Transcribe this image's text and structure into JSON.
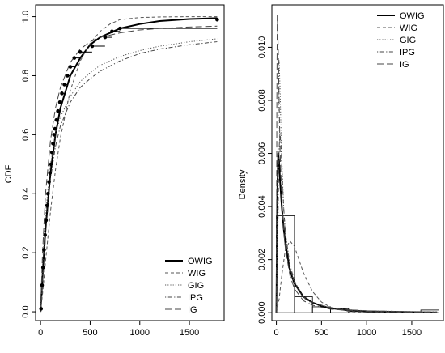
{
  "chart_data": [
    {
      "type": "line",
      "panel": "cdf",
      "xlabel": "",
      "ylabel": "CDF",
      "xlim": [
        -50,
        1850
      ],
      "ylim": [
        -0.03,
        1.04
      ],
      "x_ticks": [
        0,
        500,
        1000,
        1500
      ],
      "y_ticks": [
        0.0,
        0.2,
        0.4,
        0.6,
        0.8,
        1.0
      ],
      "grid": false,
      "legend_position": "bottom-right",
      "legend": [
        "OWIG",
        "WIG",
        "GIG",
        "IPG",
        "IG"
      ],
      "empirical_points": {
        "x": [
          5,
          15,
          25,
          35,
          45,
          55,
          65,
          75,
          85,
          95,
          105,
          115,
          125,
          135,
          145,
          160,
          175,
          195,
          215,
          240,
          270,
          300,
          340,
          400,
          520,
          650,
          720,
          800,
          1780
        ],
        "y": [
          0.01,
          0.09,
          0.15,
          0.21,
          0.26,
          0.31,
          0.36,
          0.4,
          0.44,
          0.47,
          0.5,
          0.54,
          0.57,
          0.6,
          0.62,
          0.65,
          0.68,
          0.71,
          0.74,
          0.77,
          0.8,
          0.83,
          0.86,
          0.88,
          0.9,
          0.93,
          0.95,
          0.96,
          0.99
        ]
      },
      "series": [
        {
          "name": "OWIG",
          "style": "solid",
          "x": [
            0,
            20,
            50,
            100,
            150,
            200,
            300,
            400,
            500,
            600,
            800,
            1000,
            1200,
            1500,
            1780
          ],
          "y": [
            0.0,
            0.12,
            0.28,
            0.47,
            0.6,
            0.69,
            0.8,
            0.86,
            0.905,
            0.93,
            0.96,
            0.975,
            0.985,
            0.992,
            0.995
          ]
        },
        {
          "name": "WIG",
          "style": "dashed",
          "x": [
            0,
            20,
            50,
            100,
            150,
            200,
            300,
            400,
            500,
            600,
            700,
            800,
            1000,
            1200,
            1500,
            1780
          ],
          "y": [
            0.0,
            0.06,
            0.17,
            0.34,
            0.48,
            0.59,
            0.75,
            0.85,
            0.91,
            0.95,
            0.975,
            0.99,
            0.997,
            0.999,
            1.0,
            1.0
          ]
        },
        {
          "name": "GIG",
          "style": "dotted",
          "x": [
            0,
            20,
            50,
            100,
            150,
            200,
            300,
            400,
            500,
            600,
            800,
            1000,
            1200,
            1500,
            1780
          ],
          "y": [
            0.0,
            0.16,
            0.33,
            0.5,
            0.6,
            0.66,
            0.73,
            0.78,
            0.81,
            0.835,
            0.865,
            0.885,
            0.9,
            0.915,
            0.925
          ]
        },
        {
          "name": "IPG",
          "style": "dotdash",
          "x": [
            0,
            20,
            50,
            100,
            150,
            200,
            300,
            400,
            500,
            600,
            800,
            1000,
            1200,
            1500,
            1780
          ],
          "y": [
            0.0,
            0.09,
            0.26,
            0.45,
            0.56,
            0.63,
            0.71,
            0.76,
            0.79,
            0.815,
            0.85,
            0.875,
            0.89,
            0.905,
            0.915
          ]
        },
        {
          "name": "IG",
          "style": "longdash",
          "x": [
            0,
            20,
            50,
            100,
            150,
            200,
            300,
            400,
            500,
            600,
            800,
            1000,
            1200,
            1500,
            1780
          ],
          "y": [
            0.0,
            0.2,
            0.4,
            0.58,
            0.69,
            0.76,
            0.845,
            0.89,
            0.915,
            0.93,
            0.945,
            0.955,
            0.96,
            0.965,
            0.968
          ]
        }
      ]
    },
    {
      "type": "line",
      "panel": "density",
      "xlabel": "",
      "ylabel": "Density",
      "xlim": [
        -50,
        1850
      ],
      "ylim": [
        -0.0003,
        0.0116
      ],
      "x_ticks": [
        0,
        500,
        1000,
        1500
      ],
      "y_ticks": [
        0.0,
        0.002,
        0.004,
        0.006,
        0.008,
        0.01
      ],
      "grid": false,
      "legend_position": "top-right",
      "legend": [
        "OWIG",
        "WIG",
        "GIG",
        "IPG",
        "IG"
      ],
      "histogram": {
        "bin_edges": [
          0,
          200,
          400,
          600,
          800,
          1000,
          1200,
          1400,
          1600,
          1800
        ],
        "density": [
          0.00365,
          0.0006,
          0.00022,
          0.00015,
          5e-05,
          3e-05,
          2e-05,
          0.0,
          0.0001
        ]
      },
      "series": [
        {
          "name": "OWIG",
          "style": "solid",
          "x": [
            0,
            10,
            20,
            30,
            40,
            60,
            80,
            100,
            150,
            200,
            300,
            400,
            500,
            600,
            800,
            1000,
            1500,
            1780
          ],
          "y": [
            0.0,
            0.0045,
            0.006,
            0.0057,
            0.005,
            0.004,
            0.0032,
            0.0026,
            0.0016,
            0.0011,
            0.0006,
            0.00038,
            0.00025,
            0.00017,
            9e-05,
            5e-05,
            2e-05,
            1e-05
          ]
        },
        {
          "name": "WIG",
          "style": "dashed",
          "x": [
            0,
            30,
            60,
            100,
            150,
            200,
            250,
            300,
            400,
            500,
            600,
            800,
            1000,
            1780
          ],
          "y": [
            0.0,
            0.0005,
            0.0014,
            0.0024,
            0.0027,
            0.0025,
            0.002,
            0.0015,
            0.0008,
            0.0004,
            0.0002,
            5e-05,
            1e-05,
            0.0
          ]
        },
        {
          "name": "GIG",
          "style": "dotted",
          "x": [
            0,
            10,
            20,
            30,
            40,
            50,
            60,
            80,
            100,
            150,
            200,
            300,
            400,
            600,
            800,
            1000,
            1500,
            1780
          ],
          "y": [
            0.0,
            0.0035,
            0.0075,
            0.0095,
            0.0085,
            0.007,
            0.0058,
            0.004,
            0.003,
            0.0017,
            0.0011,
            0.00055,
            0.00035,
            0.00018,
            0.0001,
            7e-05,
            4e-05,
            3e-05
          ]
        },
        {
          "name": "IPG",
          "style": "dotdash",
          "x": [
            0,
            10,
            20,
            30,
            40,
            50,
            60,
            80,
            100,
            150,
            200,
            300,
            400,
            600,
            800,
            1000,
            1500,
            1780
          ],
          "y": [
            0.0,
            0.001,
            0.004,
            0.0062,
            0.0068,
            0.0063,
            0.0055,
            0.004,
            0.003,
            0.0018,
            0.0012,
            0.0006,
            0.00038,
            0.00019,
            0.00011,
            7e-05,
            4e-05,
            3e-05
          ]
        },
        {
          "name": "IG",
          "style": "longdash",
          "x": [
            0,
            5,
            10,
            20,
            30,
            40,
            60,
            80,
            100,
            150,
            200,
            300,
            400,
            600,
            1000,
            1500,
            1780
          ],
          "y": [
            0.0,
            0.008,
            0.0112,
            0.01,
            0.008,
            0.0062,
            0.0042,
            0.0031,
            0.0024,
            0.0014,
            0.0009,
            0.00045,
            0.00028,
            0.00013,
            5e-05,
            2e-05,
            1e-05
          ]
        }
      ]
    }
  ]
}
